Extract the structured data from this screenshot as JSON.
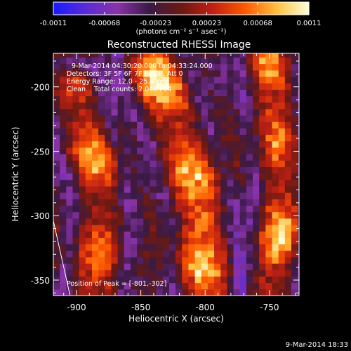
{
  "colorbar": {
    "tick_labels": [
      "-0.0011",
      "-0.00068",
      "-0.00023",
      "0.00023",
      "0.00068",
      "0.0011"
    ],
    "min": -0.0011,
    "max": 0.0011,
    "units_label": "(photons cm⁻² s⁻¹ asec⁻²)",
    "stops": [
      "#1a1aff",
      "#5a2bd6",
      "#8a33a8",
      "#3a1a46",
      "#6b1a12",
      "#c02014",
      "#ff5a00",
      "#ffc040",
      "#ffffd8"
    ]
  },
  "header": {
    "line1": "9-Mar-2014 04:30:20.000 to 04:33:24.000",
    "line2": "Detectors: 3F 5F 6F 7F 8F 9F, Att 0",
    "line3": "Energy Range: 12.0 - 25.0 keV",
    "line4": "Clean    Total counts: 2.04E+04"
  },
  "peak_label": "Position of Peak = [-801,-302]",
  "footer_timestamp": "9-Mar-2014 18:33",
  "chart_data": {
    "type": "heatmap",
    "title": "Reconstructed RHESSI Image",
    "xlabel": "Heliocentric X (arcsec)",
    "ylabel": "Heliocentric Y (arcsec)",
    "xlim": [
      -918,
      -727
    ],
    "ylim": [
      -362,
      -174
    ],
    "xticks": [
      -900,
      -850,
      -800,
      -750
    ],
    "yticks": [
      -200,
      -250,
      -300,
      -350
    ],
    "peak": [
      -801,
      -302
    ],
    "features": [
      {
        "name": "ribbon-left",
        "path": [
          [
            -888,
            -370
          ],
          [
            -883,
            -335
          ],
          [
            -880,
            -300
          ],
          [
            -884,
            -270
          ],
          [
            -893,
            -240
          ],
          [
            -900,
            -205
          ]
        ],
        "halfwidth": 12,
        "amp": 0.00085
      },
      {
        "name": "ribbon-center",
        "path": [
          [
            -800,
            -370
          ],
          [
            -801,
            -330
          ],
          [
            -801,
            -302
          ],
          [
            -810,
            -272
          ],
          [
            -820,
            -240
          ],
          [
            -833,
            -205
          ],
          [
            -842,
            -180
          ]
        ],
        "halfwidth": 13,
        "amp": 0.0011
      },
      {
        "name": "ribbon-right",
        "path": [
          [
            -752,
            -370
          ],
          [
            -745,
            -330
          ],
          [
            -741,
            -300
          ],
          [
            -741,
            -270
          ],
          [
            -743,
            -240
          ],
          [
            -748,
            -205
          ],
          [
            -752,
            -180
          ]
        ],
        "halfwidth": 11,
        "amp": 0.00095
      }
    ],
    "limb_line": [
      [
        -918,
        -304
      ],
      [
        -905,
        -362
      ]
    ],
    "grid": false
  }
}
